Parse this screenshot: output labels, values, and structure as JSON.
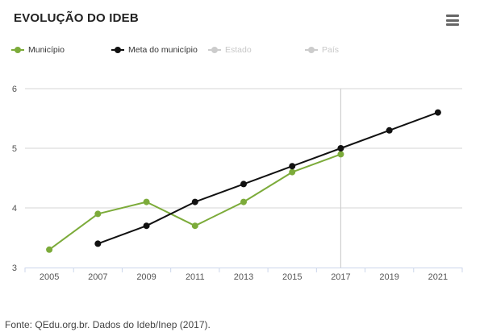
{
  "header": {
    "title": "EVOLUÇÃO DO IDEB",
    "menu_icon": "hamburger-menu-icon"
  },
  "legend": [
    {
      "label": "Município",
      "color": "#7cab3a",
      "hidden": false
    },
    {
      "label": "Meta do município",
      "color": "#111111",
      "hidden": false
    },
    {
      "label": "Estado",
      "color": "#cccccc",
      "hidden": true
    },
    {
      "label": "País",
      "color": "#cccccc",
      "hidden": true
    }
  ],
  "chart_data": {
    "type": "line",
    "title": "EVOLUÇÃO DO IDEB",
    "xlabel": "",
    "ylabel": "",
    "categories": [
      "2005",
      "2007",
      "2009",
      "2011",
      "2013",
      "2015",
      "2017",
      "2019",
      "2021"
    ],
    "ylim": [
      3,
      6
    ],
    "yticks": [
      "3",
      "4",
      "5",
      "6"
    ],
    "highlight_category": "2017",
    "series": [
      {
        "name": "Município",
        "color": "#7cab3a",
        "values": [
          3.3,
          3.9,
          4.1,
          3.7,
          4.1,
          4.6,
          4.9,
          null,
          null
        ]
      },
      {
        "name": "Meta do município",
        "color": "#111111",
        "values": [
          null,
          3.4,
          3.7,
          4.1,
          4.4,
          4.7,
          5.0,
          5.3,
          5.6
        ]
      }
    ]
  },
  "footer": {
    "source": "Fonte: QEdu.org.br. Dados do Ideb/Inep (2017)."
  }
}
